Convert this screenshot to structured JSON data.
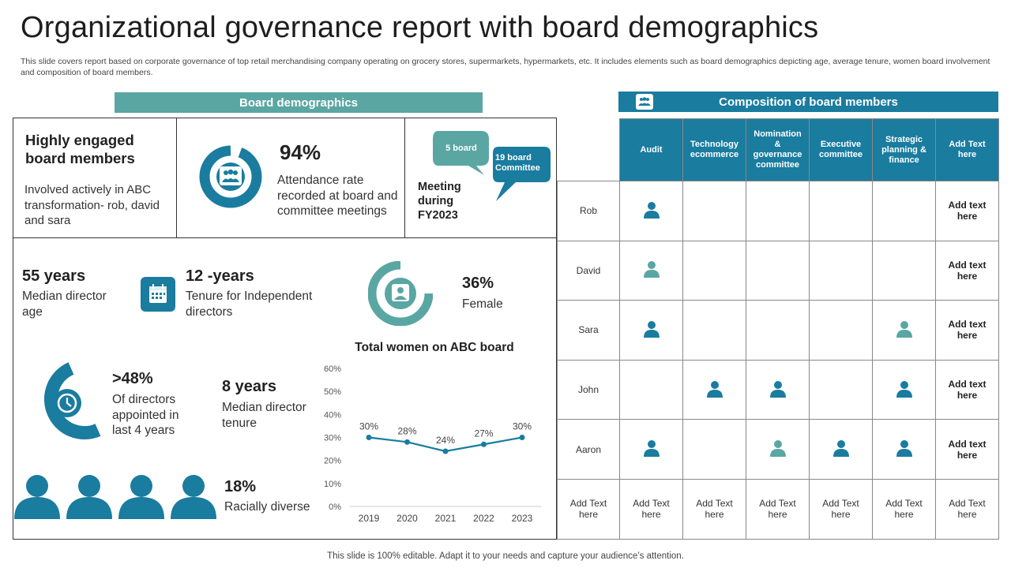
{
  "title": "Organizational governance report with board demographics",
  "subtitle": "This slide covers report based on corporate governance of top retail merchandising company operating on  grocery stores, supermarkets, hypermarkets, etc. It includes elements such as  board demographics depicting age, average tenure, women board involvement and composition of board members.",
  "left_band": "Board demographics",
  "right_band": "Composition of board members",
  "engaged": {
    "heading": "Highly engaged board members",
    "body": "Involved  actively in ABC transformation- rob, david and sara"
  },
  "attendance": {
    "value": "94%",
    "label": "Attendance rate recorded at board and committee meetings"
  },
  "meetings": {
    "board": "5 board",
    "committee": "19 board Committee",
    "label": "Meeting during FY2023"
  },
  "stats": {
    "age_value": "55 years",
    "age_label": "Median director age",
    "tenure_value": "12 -years",
    "tenure_label": "Tenure for Independent directors",
    "female_value": "36%",
    "female_label": "Female",
    "appointed_value": ">48%",
    "appointed_label": "Of directors appointed in last 4 years",
    "median_tenure_value": "8 years",
    "median_tenure_label": "Median director tenure",
    "racial_value": "18%",
    "racial_label": "Racially diverse"
  },
  "chart_data": {
    "type": "line",
    "title": "Total women on ABC board",
    "categories": [
      "2019",
      "2020",
      "2021",
      "2022",
      "2023"
    ],
    "values": [
      30,
      28,
      24,
      27,
      30
    ],
    "data_labels": [
      "30%",
      "28%",
      "24%",
      "27%",
      "30%"
    ],
    "yticks": [
      "0%",
      "10%",
      "20%",
      "30%",
      "40%",
      "50%",
      "60%"
    ],
    "ylim": [
      0,
      60
    ],
    "xlabel": "",
    "ylabel": ""
  },
  "composition": {
    "columns": [
      "Audit",
      "Technology ecommerce",
      "Nomination & governance committee",
      "Executive committee",
      "Strategic planning & finance",
      "Add Text here"
    ],
    "rows": [
      {
        "name": "Rob",
        "cells": [
          "dark",
          "",
          "",
          "",
          "",
          ""
        ],
        "last": "Add text here"
      },
      {
        "name": "David",
        "cells": [
          "light",
          "",
          "",
          "",
          "",
          ""
        ],
        "last": "Add text here"
      },
      {
        "name": "Sara",
        "cells": [
          "dark",
          "",
          "",
          "",
          "light",
          ""
        ],
        "last": "Add text here"
      },
      {
        "name": "John",
        "cells": [
          "",
          "dark",
          "dark",
          "",
          "dark",
          ""
        ],
        "last": "Add text here"
      },
      {
        "name": "Aaron",
        "cells": [
          "dark",
          "",
          "light",
          "dark",
          "dark",
          ""
        ],
        "last": "Add text here"
      }
    ],
    "footer_row": [
      "Add Text here",
      "Add Text here",
      "Add Text here",
      "Add Text here",
      "Add Text here",
      "Add Text here",
      "Add Text here"
    ]
  },
  "footer": "This slide is 100% editable. Adapt it to your needs and capture your audience’s attention.",
  "colors": {
    "dark": "#1a7c9f",
    "light": "#5aa6a3"
  }
}
